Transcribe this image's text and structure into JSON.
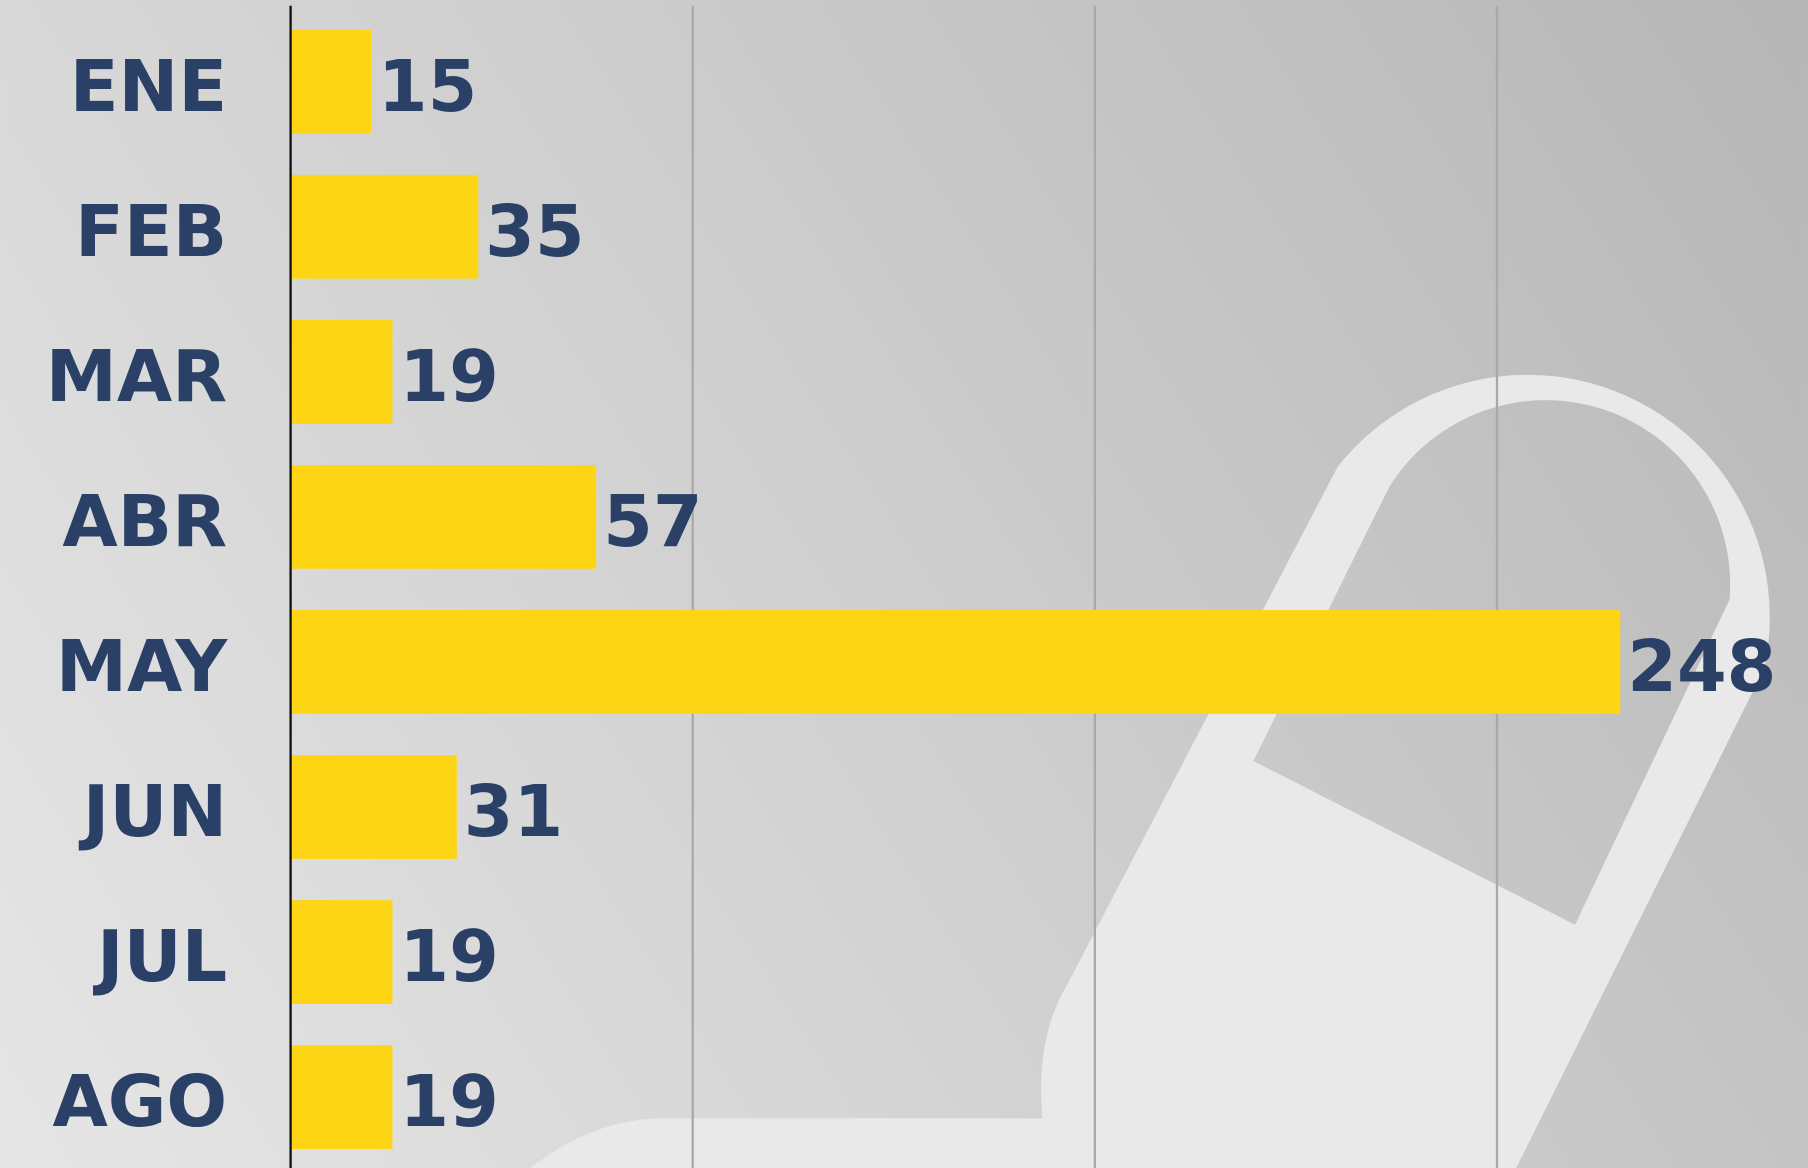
{
  "chart_data": {
    "type": "bar",
    "orientation": "horizontal",
    "categories": [
      "ENE",
      "FEB",
      "MAR",
      "ABR",
      "MAY",
      "JUN",
      "JUL",
      "AGO"
    ],
    "values": [
      15,
      35,
      19,
      57,
      248,
      31,
      19,
      19
    ],
    "color": "#fdd515",
    "xlim": [
      0,
      283
    ],
    "xticks": [
      75,
      150,
      225
    ],
    "grid": true
  }
}
